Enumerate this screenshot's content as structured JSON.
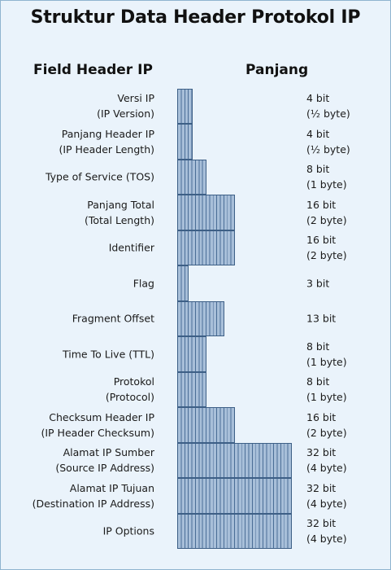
{
  "title": "Struktur Data Header Protokol IP",
  "headers": {
    "field": "Field Header IP",
    "length": "Panjang"
  },
  "fields": [
    {
      "name_lines": [
        "Versi IP",
        "(IP Version)"
      ],
      "length_lines": [
        "4 bit",
        "(½ byte)"
      ],
      "bits": 4
    },
    {
      "name_lines": [
        "Panjang Header IP",
        "(IP Header Length)"
      ],
      "length_lines": [
        "4 bit",
        "(½ byte)"
      ],
      "bits": 4
    },
    {
      "name_lines": [
        "Type of Service (TOS)"
      ],
      "length_lines": [
        "8 bit",
        "(1 byte)"
      ],
      "bits": 8
    },
    {
      "name_lines": [
        "Panjang Total",
        "(Total Length)"
      ],
      "length_lines": [
        "16 bit",
        "(2 byte)"
      ],
      "bits": 16
    },
    {
      "name_lines": [
        "Identifier"
      ],
      "length_lines": [
        "16 bit",
        "(2 byte)"
      ],
      "bits": 16
    },
    {
      "name_lines": [
        "Flag"
      ],
      "length_lines": [
        "3 bit"
      ],
      "bits": 3
    },
    {
      "name_lines": [
        "Fragment Offset"
      ],
      "length_lines": [
        "13 bit"
      ],
      "bits": 13
    },
    {
      "name_lines": [
        "Time To Live (TTL)"
      ],
      "length_lines": [
        "8 bit",
        "(1 byte)"
      ],
      "bits": 8
    },
    {
      "name_lines": [
        "Protokol",
        "(Protocol)"
      ],
      "length_lines": [
        "8 bit",
        "(1 byte)"
      ],
      "bits": 8
    },
    {
      "name_lines": [
        "Checksum Header IP",
        "(IP Header Checksum)"
      ],
      "length_lines": [
        "16 bit",
        "(2 byte)"
      ],
      "bits": 16
    },
    {
      "name_lines": [
        "Alamat IP Sumber",
        "(Source IP Address)"
      ],
      "length_lines": [
        "32 bit",
        "(4 byte)"
      ],
      "bits": 32
    },
    {
      "name_lines": [
        "Alamat IP Tujuan",
        "(Destination IP Address)"
      ],
      "length_lines": [
        "32 bit",
        "(4 byte)"
      ],
      "bits": 32
    },
    {
      "name_lines": [
        "IP Options"
      ],
      "length_lines": [
        "32 bit",
        "(4 byte)"
      ],
      "bits": 32
    }
  ]
}
